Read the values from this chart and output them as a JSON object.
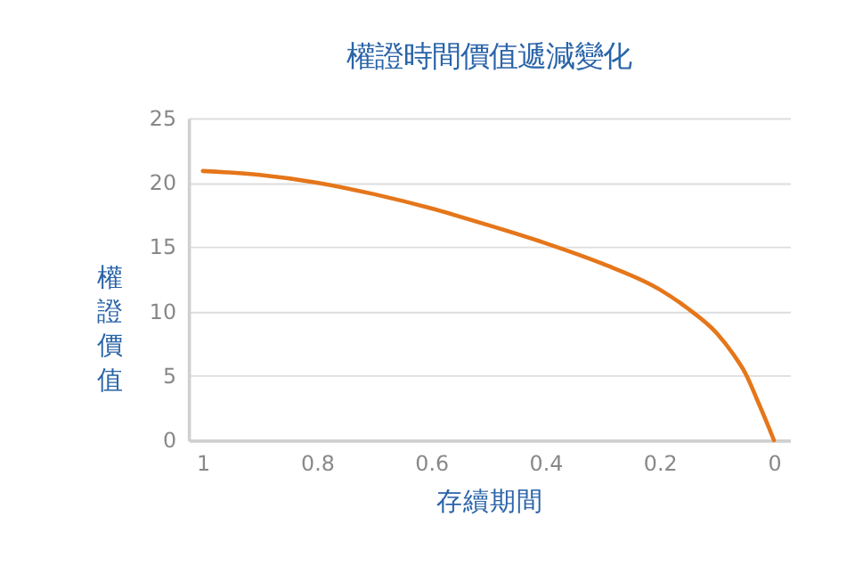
{
  "chart_data": {
    "type": "line",
    "title": "權證時間價值遞減變化",
    "xlabel": "存續期間",
    "ylabel": "權證價值",
    "x": [
      1,
      0.9,
      0.8,
      0.7,
      0.6,
      0.5,
      0.4,
      0.3,
      0.2,
      0.15,
      0.1,
      0.07,
      0.05,
      0.03,
      0.01,
      0
    ],
    "series": [
      {
        "color": "#e5761a",
        "values": [
          20.9,
          20.6,
          20.0,
          19.1,
          18.0,
          16.7,
          15.3,
          13.7,
          11.7,
          10.2,
          8.3,
          6.6,
          5.2,
          3.2,
          1.1,
          0
        ]
      }
    ],
    "xlim": [
      1.025,
      -0.028
    ],
    "xticks": [
      1,
      0.8,
      0.6,
      0.4,
      0.2,
      0
    ],
    "ylim": [
      0,
      25
    ],
    "yticks": [
      0,
      5,
      10,
      15,
      20,
      25
    ],
    "grid": "y",
    "marker": "none",
    "line_style": "solid"
  }
}
